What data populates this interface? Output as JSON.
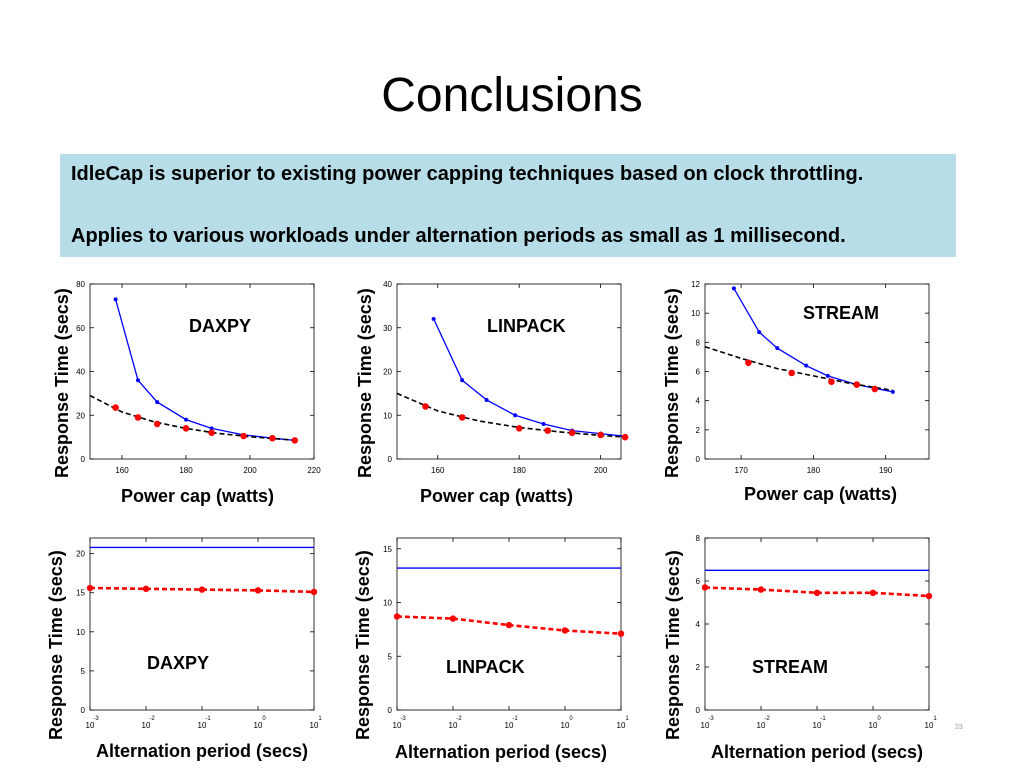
{
  "title": "Conclusions",
  "notes": [
    "IdleCap is superior to existing power capping techniques based on clock throttling.",
    "Applies to various workloads under alternation periods as small as 1 millisecond."
  ],
  "slide_number": "23",
  "colors": {
    "note_background": "#b7dde8",
    "idlecap": "#ff0000",
    "clock_throttling": "#0000ff",
    "fit": "#000000"
  },
  "chart_data": [
    {
      "type": "line",
      "workload_label": "DAXPY",
      "xlabel": "Power cap (watts)",
      "ylabel": "Response Time (secs)",
      "xlim": [
        150,
        220
      ],
      "ylim": [
        0,
        80
      ],
      "xticks": [
        "160",
        "180",
        "200",
        "220"
      ],
      "yticks": [
        "0",
        "20",
        "40",
        "60",
        "80"
      ],
      "series": [
        {
          "style": "blue",
          "x": [
            158,
            165,
            171,
            180,
            188,
            198,
            207,
            214
          ],
          "y": [
            73,
            36,
            26,
            18,
            14,
            11,
            9.5,
            8.5
          ]
        },
        {
          "style": "red",
          "x": [
            158,
            165,
            171,
            180,
            188,
            198,
            207,
            214
          ],
          "y": [
            23.5,
            19,
            16,
            14,
            12,
            10.5,
            9.5,
            8.5
          ]
        },
        {
          "style": "dashed",
          "x": [
            150,
            160,
            170,
            180,
            190,
            200,
            210,
            215
          ],
          "y": [
            29,
            21.5,
            17,
            14,
            11.7,
            10.2,
            9,
            8.5
          ]
        }
      ]
    },
    {
      "type": "line",
      "workload_label": "LINPACK",
      "xlabel": "Power cap (watts)",
      "ylabel": "Response Time (secs)",
      "xlim": [
        150,
        205
      ],
      "ylim": [
        0,
        40
      ],
      "xticks": [
        "160",
        "180",
        "200"
      ],
      "yticks": [
        "0",
        "10",
        "20",
        "30",
        "40"
      ],
      "series": [
        {
          "style": "blue",
          "x": [
            159,
            166,
            172,
            179,
            186,
            193,
            200,
            206
          ],
          "y": [
            32,
            18,
            13.5,
            10,
            8,
            6.5,
            5.8,
            5.2
          ]
        },
        {
          "style": "red",
          "x": [
            157,
            166,
            180,
            187,
            193,
            200,
            206
          ],
          "y": [
            12,
            9.5,
            7,
            6.5,
            6,
            5.5,
            5
          ]
        },
        {
          "style": "dashed",
          "x": [
            150,
            160,
            170,
            180,
            190,
            200,
            206
          ],
          "y": [
            15,
            11,
            8.7,
            7.2,
            6.2,
            5.4,
            5
          ]
        }
      ]
    },
    {
      "type": "line",
      "workload_label": "STREAM",
      "xlabel": "Power cap (watts)",
      "ylabel": "Response Time (secs)",
      "xlim": [
        165,
        196
      ],
      "ylim": [
        0,
        12
      ],
      "xticks": [
        "170",
        "180",
        "190"
      ],
      "yticks": [
        "0",
        "2",
        "4",
        "6",
        "8",
        "10",
        "12"
      ],
      "series": [
        {
          "style": "blue",
          "x": [
            169,
            172.5,
            175,
            179,
            182,
            186,
            191
          ],
          "y": [
            11.7,
            8.7,
            7.6,
            6.4,
            5.7,
            5.1,
            4.6
          ]
        },
        {
          "style": "red",
          "x": [
            171,
            177,
            182.5,
            186,
            188.5
          ],
          "y": [
            6.6,
            5.9,
            5.3,
            5.1,
            4.8
          ]
        },
        {
          "style": "dashed",
          "x": [
            165,
            170,
            175,
            180,
            185,
            191
          ],
          "y": [
            7.7,
            6.9,
            6.2,
            5.7,
            5.2,
            4.7
          ]
        }
      ]
    },
    {
      "type": "line",
      "workload_label": "DAXPY",
      "xlabel": "Alternation period (secs)",
      "ylabel": "Response Time (secs)",
      "xscale": "log",
      "xlim": [
        -3,
        1
      ],
      "ylim": [
        0,
        22
      ],
      "xticks": [
        "-3",
        "-2",
        "-1",
        "0",
        "1"
      ],
      "xtick_base": "10",
      "yticks": [
        "0",
        "5",
        "10",
        "15",
        "20"
      ],
      "series": [
        {
          "style": "blue-flat",
          "x": [
            -3,
            1
          ],
          "y": [
            20.8,
            20.8
          ]
        },
        {
          "style": "red-dashed",
          "x": [
            -3,
            -2,
            -1,
            0,
            1
          ],
          "y": [
            15.6,
            15.5,
            15.4,
            15.3,
            15.1
          ]
        }
      ]
    },
    {
      "type": "line",
      "workload_label": "LINPACK",
      "xlabel": "Alternation period (secs)",
      "ylabel": "Response Time (secs)",
      "xscale": "log",
      "xlim": [
        -3,
        1
      ],
      "ylim": [
        0,
        16
      ],
      "xticks": [
        "-3",
        "-2",
        "-1",
        "0",
        "1"
      ],
      "xtick_base": "10",
      "yticks": [
        "0",
        "5",
        "10",
        "15"
      ],
      "series": [
        {
          "style": "blue-flat",
          "x": [
            -3,
            1
          ],
          "y": [
            13.2,
            13.2
          ]
        },
        {
          "style": "red-dashed",
          "x": [
            -3,
            -2,
            -1,
            0,
            1
          ],
          "y": [
            8.7,
            8.5,
            7.9,
            7.4,
            7.1
          ]
        }
      ]
    },
    {
      "type": "line",
      "workload_label": "STREAM",
      "xlabel": "Alternation period (secs)",
      "ylabel": "Response Time (secs)",
      "xscale": "log",
      "xlim": [
        -3,
        1
      ],
      "ylim": [
        0,
        8
      ],
      "xticks": [
        "-3",
        "-2",
        "-1",
        "0",
        "1"
      ],
      "xtick_base": "10",
      "yticks": [
        "0",
        "2",
        "4",
        "6",
        "8"
      ],
      "series": [
        {
          "style": "blue-flat",
          "x": [
            -3,
            1
          ],
          "y": [
            6.5,
            6.5
          ]
        },
        {
          "style": "red-dashed",
          "x": [
            -3,
            -2,
            -1,
            0,
            1
          ],
          "y": [
            5.7,
            5.6,
            5.45,
            5.45,
            5.3
          ]
        }
      ]
    }
  ]
}
